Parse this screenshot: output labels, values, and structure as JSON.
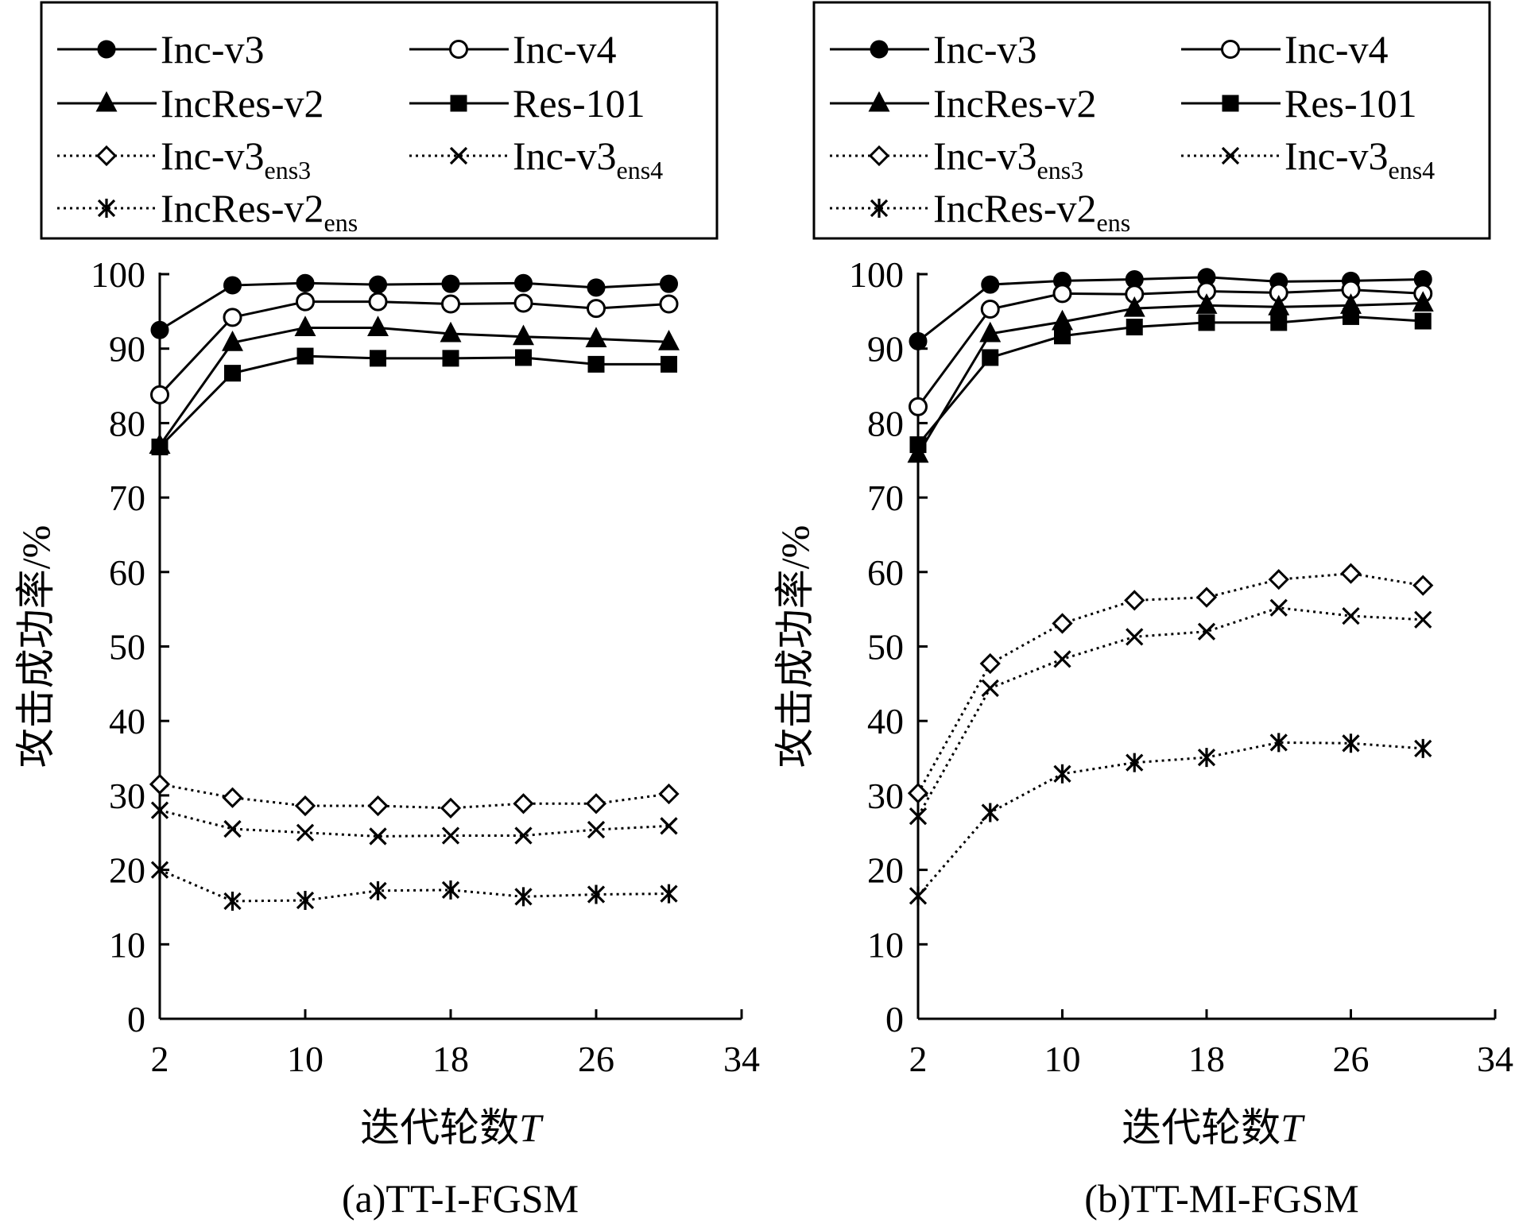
{
  "chart_data": [
    {
      "id": "a",
      "type": "line",
      "caption": "(a)TT-I-FGSM",
      "xlabel": "迭代轮数",
      "xlabel_var": "T",
      "ylabel": "攻击成功率/%",
      "xlim": [
        2,
        34
      ],
      "ylim": [
        0,
        100
      ],
      "xticks": [
        2,
        10,
        18,
        26,
        34
      ],
      "yticks": [
        0,
        10,
        20,
        30,
        40,
        50,
        60,
        70,
        80,
        90,
        100
      ],
      "x": [
        2,
        6,
        10,
        14,
        18,
        22,
        26,
        30
      ],
      "legend_position": "top",
      "series": [
        {
          "name": "Inc-v3",
          "sub": "",
          "marker": "circle-filled",
          "line": "solid",
          "values": [
            92.5,
            98.5,
            98.8,
            98.6,
            98.7,
            98.8,
            98.2,
            98.7
          ]
        },
        {
          "name": "Inc-v4",
          "sub": "",
          "marker": "circle-open",
          "line": "solid",
          "values": [
            83.8,
            94.2,
            96.3,
            96.3,
            96.0,
            96.1,
            95.4,
            96.0
          ]
        },
        {
          "name": "IncRes-v2",
          "sub": "",
          "marker": "triangle-filled",
          "line": "solid",
          "values": [
            77.0,
            90.8,
            92.8,
            92.8,
            92.0,
            91.6,
            91.3,
            90.9
          ]
        },
        {
          "name": "Res-101",
          "sub": "",
          "marker": "square-filled",
          "line": "solid",
          "values": [
            76.8,
            86.7,
            89.0,
            88.7,
            88.7,
            88.8,
            87.9,
            87.9
          ]
        },
        {
          "name": "Inc-v3",
          "sub": "ens3",
          "marker": "diamond-open",
          "line": "dotted",
          "values": [
            31.5,
            29.7,
            28.6,
            28.6,
            28.3,
            28.9,
            28.9,
            30.2
          ]
        },
        {
          "name": "Inc-v3",
          "sub": "ens4",
          "marker": "x",
          "line": "dotted",
          "values": [
            28.0,
            25.5,
            25.0,
            24.5,
            24.6,
            24.6,
            25.4,
            25.9
          ]
        },
        {
          "name": "IncRes-v2",
          "sub": "ens",
          "marker": "asterisk",
          "line": "dotted",
          "values": [
            20.0,
            15.8,
            15.9,
            17.2,
            17.3,
            16.4,
            16.7,
            16.8
          ]
        }
      ]
    },
    {
      "id": "b",
      "type": "line",
      "caption": "(b)TT-MI-FGSM",
      "xlabel": "迭代轮数",
      "xlabel_var": "T",
      "ylabel": "攻击成功率/%",
      "xlim": [
        2,
        34
      ],
      "ylim": [
        0,
        100
      ],
      "xticks": [
        2,
        10,
        18,
        26,
        34
      ],
      "yticks": [
        0,
        10,
        20,
        30,
        40,
        50,
        60,
        70,
        80,
        90,
        100
      ],
      "x": [
        2,
        6,
        10,
        14,
        18,
        22,
        26,
        30
      ],
      "legend_position": "top",
      "series": [
        {
          "name": "Inc-v3",
          "sub": "",
          "marker": "circle-filled",
          "line": "solid",
          "values": [
            91.0,
            98.6,
            99.1,
            99.3,
            99.6,
            99.0,
            99.1,
            99.3
          ]
        },
        {
          "name": "Inc-v4",
          "sub": "",
          "marker": "circle-open",
          "line": "solid",
          "values": [
            82.2,
            95.3,
            97.4,
            97.3,
            97.7,
            97.5,
            97.9,
            97.4
          ]
        },
        {
          "name": "IncRes-v2",
          "sub": "",
          "marker": "triangle-filled",
          "line": "solid",
          "values": [
            75.8,
            92.0,
            93.6,
            95.4,
            95.8,
            95.6,
            95.8,
            96.1
          ]
        },
        {
          "name": "Res-101",
          "sub": "",
          "marker": "square-filled",
          "line": "solid",
          "values": [
            77.1,
            88.8,
            91.7,
            92.9,
            93.5,
            93.5,
            94.3,
            93.7
          ]
        },
        {
          "name": "Inc-v3",
          "sub": "ens3",
          "marker": "diamond-open",
          "line": "dotted",
          "values": [
            30.3,
            47.7,
            53.1,
            56.2,
            56.6,
            59.0,
            59.8,
            58.2
          ]
        },
        {
          "name": "Inc-v3",
          "sub": "ens4",
          "marker": "x",
          "line": "dotted",
          "values": [
            27.2,
            44.4,
            48.3,
            51.3,
            52.0,
            55.2,
            54.1,
            53.6
          ]
        },
        {
          "name": "IncRes-v2",
          "sub": "ens",
          "marker": "asterisk",
          "line": "dotted",
          "values": [
            16.5,
            27.7,
            32.9,
            34.4,
            35.1,
            37.1,
            37.0,
            36.3
          ]
        }
      ]
    }
  ]
}
